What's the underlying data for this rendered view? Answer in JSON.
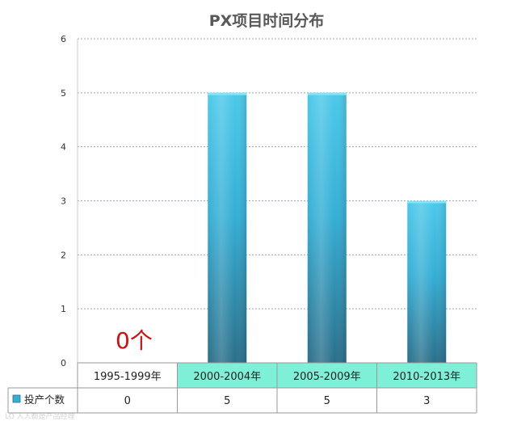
{
  "chart_data": {
    "type": "bar",
    "title": "PX项目时间分布",
    "categories": [
      "1995-1999年",
      "2000-2004年",
      "2005-2009年",
      "2010-2013年"
    ],
    "series": [
      {
        "name": "投产个数",
        "values": [
          0,
          5,
          5,
          3
        ]
      }
    ],
    "ylim": [
      0,
      6
    ],
    "yticks": [
      0,
      1,
      2,
      3,
      4,
      5,
      6
    ],
    "grid": true,
    "annotation": "0个",
    "legend_position": "bottom-left (data table)",
    "colors": {
      "bar_top": "#4cc9ea",
      "bar_mid": "#35afd6",
      "bar_bottom": "#2b6f8a",
      "highlight_cell": "#7ff0d8",
      "annotation": "#cc1111",
      "grid": "#9aa8c8",
      "title": "#595959"
    }
  },
  "data_table": {
    "header_label": "投产个数",
    "highlighted_categories": [
      1,
      2,
      3
    ]
  },
  "watermark": "LO 人人都是产品经理"
}
